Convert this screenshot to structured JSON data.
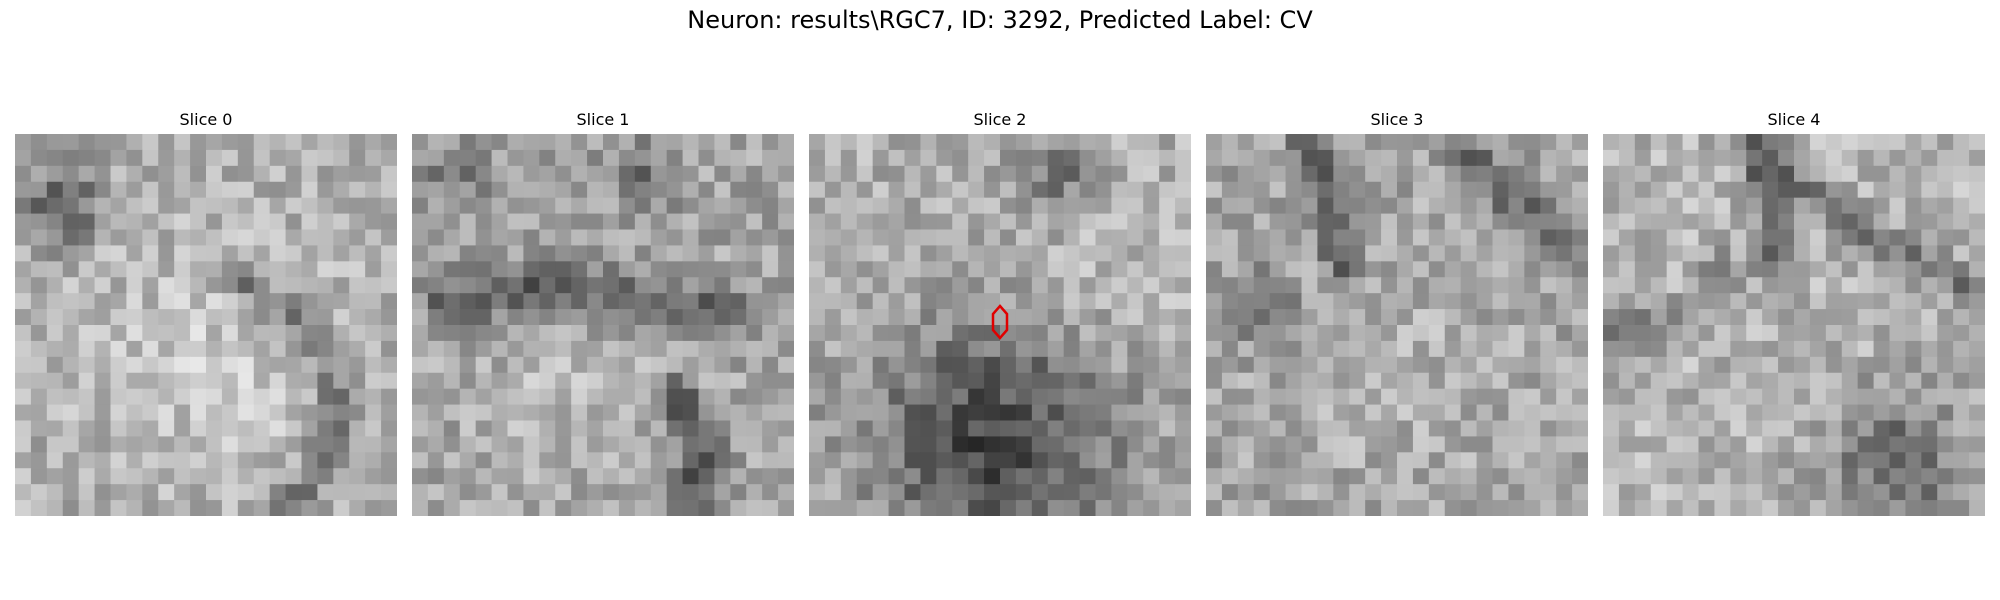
{
  "figure": {
    "title": "Neuron: results\\RGC7, ID: 3292, Predicted Label: CV"
  },
  "slices": [
    {
      "label": "Slice 0"
    },
    {
      "label": "Slice 1"
    },
    {
      "label": "Slice 2",
      "marker_color": "#e00000"
    },
    {
      "label": "Slice 3"
    },
    {
      "label": "Slice 4"
    }
  ]
}
